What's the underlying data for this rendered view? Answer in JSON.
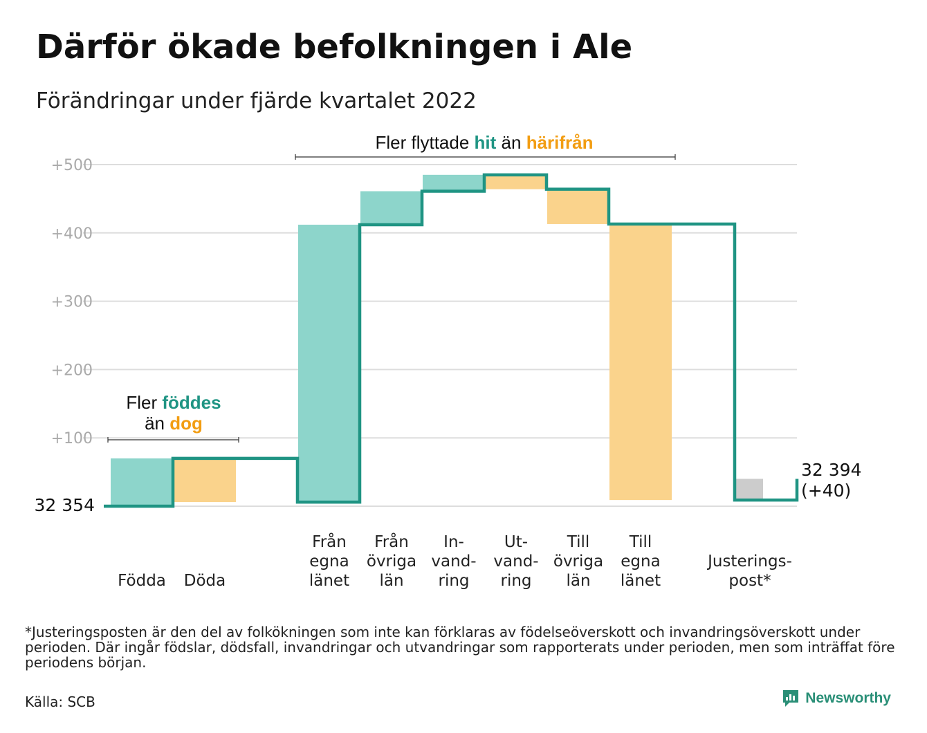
{
  "title": "Därför ökade befolkningen i Ale",
  "subtitle": "Förändringar under fjärde kvartalet 2022",
  "footnote": "*Justeringsposten är den del av folkökningen som inte kan förklaras av födelseöverskott och invandringsöverskott under perioden. Där ingår födslar, dödsfall, invandringar och utvandringar som rapporterats under perioden, men som inträffat före periodens början.",
  "source": "Källa: SCB",
  "brand": "Newsworthy",
  "colors": {
    "increase": "#8dd5cb",
    "decrease": "#fad38c",
    "adjustment": "#cccccc",
    "line": "#1f9483",
    "accent_hit": "#1f9483",
    "accent_harifran": "#f29d12",
    "grid": "#dddddd"
  },
  "chart_data": {
    "type": "waterfall",
    "ylim": [
      0,
      500
    ],
    "y_ticks": [
      "+100",
      "+200",
      "+300",
      "+400",
      "+500"
    ],
    "start_label": "32 354",
    "end_label": [
      "32 394",
      "(+40)"
    ],
    "steps": [
      {
        "label": [
          "Födda"
        ],
        "change": 70,
        "kind": "increase"
      },
      {
        "label": [
          "Döda"
        ],
        "change": -64,
        "kind": "decrease"
      },
      {
        "label": [
          "Från",
          "egna",
          "länet"
        ],
        "change": 406,
        "kind": "increase"
      },
      {
        "label": [
          "Från",
          "övriga",
          "län"
        ],
        "change": 49,
        "kind": "increase"
      },
      {
        "label": [
          "In-",
          "vand-",
          "ring"
        ],
        "change": 24,
        "kind": "increase"
      },
      {
        "label": [
          "Ut-",
          "vand-",
          "ring"
        ],
        "change": -21,
        "kind": "decrease"
      },
      {
        "label": [
          "Till",
          "övriga",
          "län"
        ],
        "change": -51,
        "kind": "decrease"
      },
      {
        "label": [
          "Till",
          "egna",
          "länet"
        ],
        "change": -404,
        "kind": "decrease"
      },
      {
        "label": [
          "Justerings-",
          "post*"
        ],
        "change": 31,
        "kind": "adjustment"
      }
    ],
    "annotations": [
      {
        "lines": [
          [
            {
              "text": "Fler ",
              "style": "normal"
            },
            {
              "text": "föddes",
              "style": "hit"
            }
          ],
          [
            {
              "text": "än ",
              "style": "normal"
            },
            {
              "text": "dog",
              "style": "harifran"
            }
          ]
        ]
      },
      {
        "lines": [
          [
            {
              "text": "Fler flyttade ",
              "style": "normal"
            },
            {
              "text": "hit",
              "style": "hit"
            },
            {
              "text": " än ",
              "style": "normal"
            },
            {
              "text": "härifrån",
              "style": "harifran"
            }
          ]
        ]
      }
    ]
  }
}
